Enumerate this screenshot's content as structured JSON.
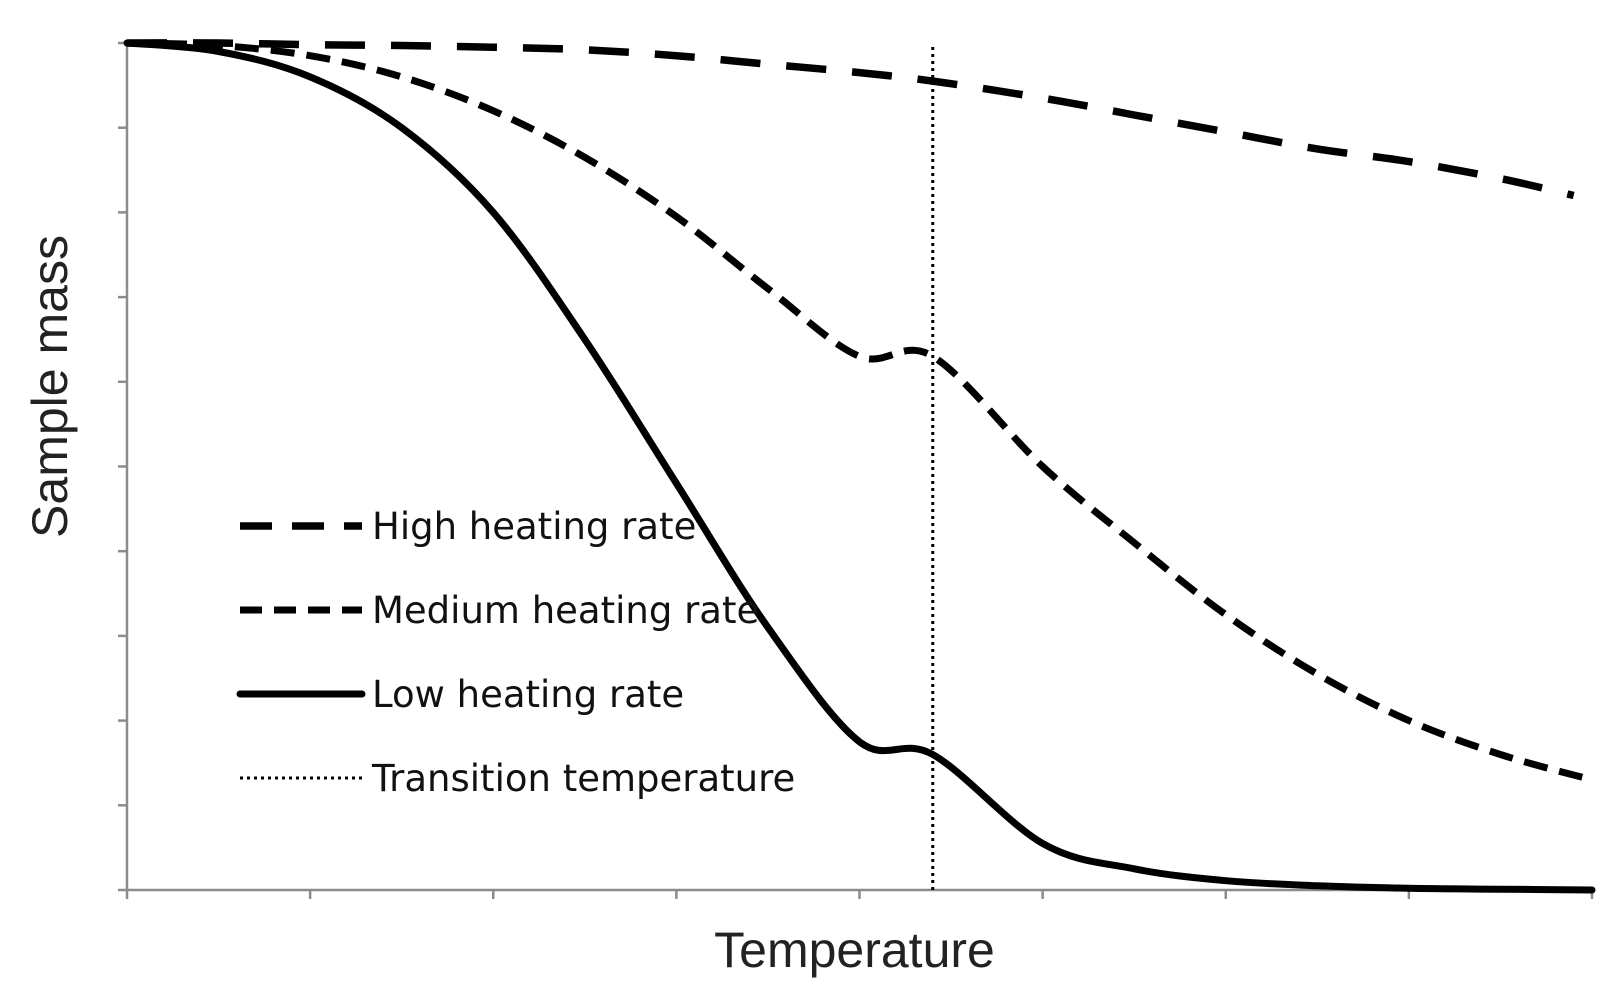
{
  "chart_data": {
    "type": "line",
    "title": "",
    "xlabel": "Temperature",
    "ylabel": "Sample mass",
    "xlim": [
      0,
      8
    ],
    "ylim": [
      0,
      10
    ],
    "x_tick_count": 9,
    "y_tick_count": 11,
    "tick_labels_shown": false,
    "grid": false,
    "legend_position": "lower-left",
    "transition_temperature": 4.4,
    "series": [
      {
        "name": "High heating rate",
        "style": "long-dash",
        "color": "#000000",
        "x": [
          0,
          0.5,
          1,
          1.5,
          2,
          2.5,
          3,
          3.5,
          4,
          4.4,
          5,
          5.5,
          6,
          6.5,
          7,
          7.5,
          7.9
        ],
        "y": [
          10,
          10,
          9.98,
          9.97,
          9.95,
          9.92,
          9.85,
          9.75,
          9.65,
          9.55,
          9.35,
          9.15,
          8.95,
          8.75,
          8.6,
          8.4,
          8.2
        ]
      },
      {
        "name": "Medium heating rate",
        "style": "short-dash",
        "color": "#000000",
        "x": [
          0,
          0.5,
          1,
          1.5,
          2,
          2.5,
          3,
          3.5,
          4,
          4.4,
          5,
          5.5,
          6,
          6.5,
          7,
          7.5,
          8
        ],
        "y": [
          10,
          9.97,
          9.85,
          9.6,
          9.2,
          8.65,
          7.95,
          7.1,
          6.3,
          6.3,
          5.0,
          4.1,
          3.25,
          2.55,
          2.0,
          1.6,
          1.3
        ]
      },
      {
        "name": "Low heating rate",
        "style": "solid",
        "color": "#000000",
        "x": [
          0,
          0.5,
          1,
          1.5,
          2,
          2.5,
          3,
          3.5,
          4,
          4.4,
          5,
          5.5,
          6,
          6.5,
          7,
          7.5,
          8
        ],
        "y": [
          10,
          9.9,
          9.6,
          9.0,
          8.0,
          6.5,
          4.8,
          3.1,
          1.75,
          1.6,
          0.55,
          0.25,
          0.11,
          0.05,
          0.02,
          0.01,
          0
        ]
      },
      {
        "name": "Transition temperature",
        "style": "dotted",
        "color": "#000000",
        "x": [
          4.4,
          4.4
        ],
        "y": [
          0,
          10
        ]
      }
    ]
  }
}
